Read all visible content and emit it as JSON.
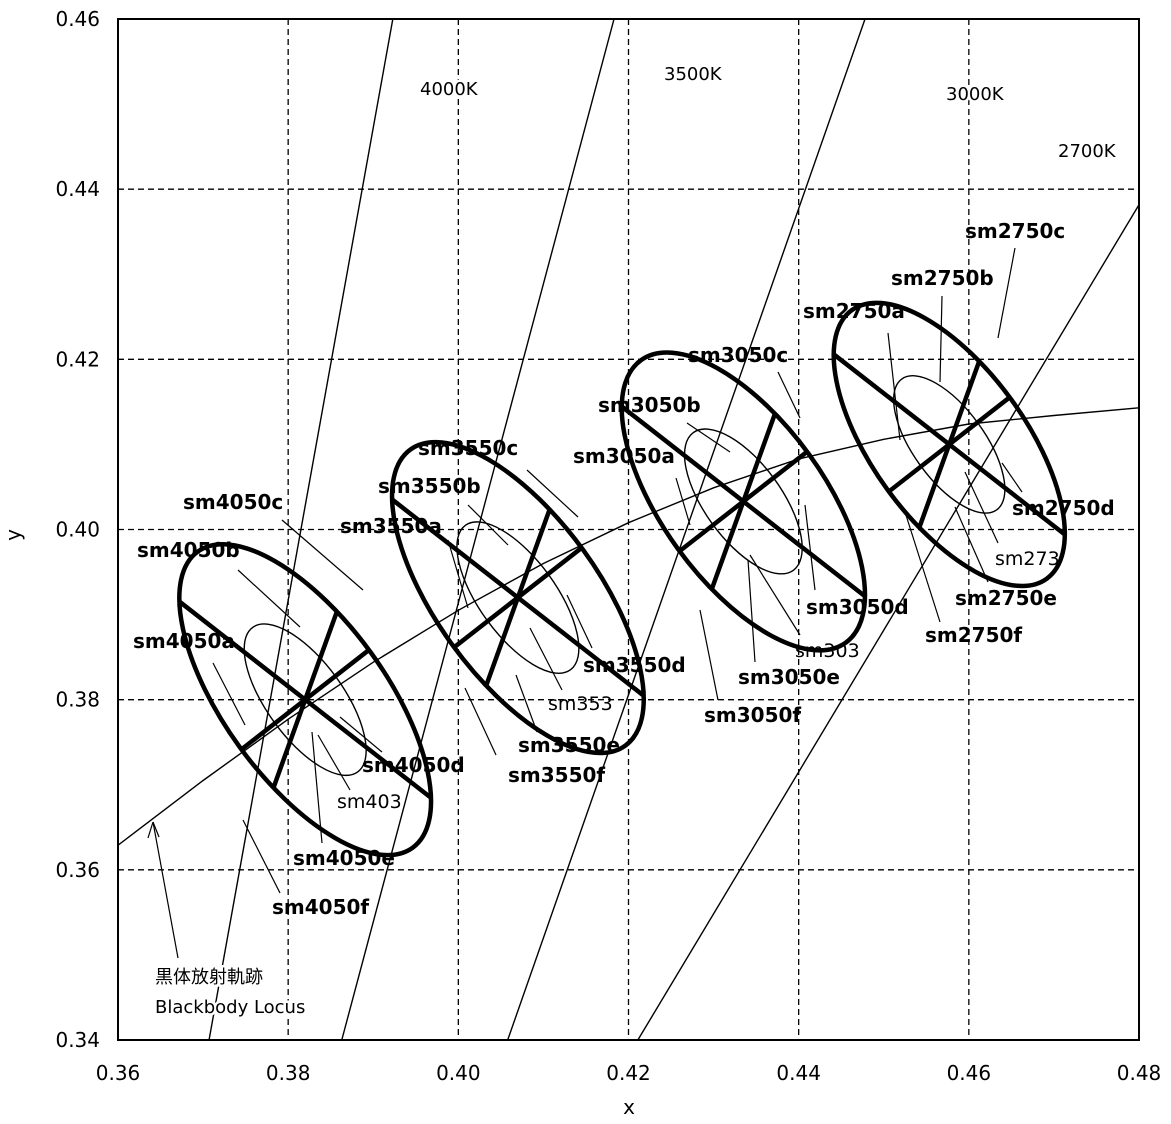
{
  "chart_data": {
    "type": "scatter",
    "title": "",
    "xlabel": "x",
    "ylabel": "y",
    "xlim": [
      0.36,
      0.48
    ],
    "ylim": [
      0.34,
      0.46
    ],
    "x_ticks": [
      "0.36",
      "0.38",
      "0.40",
      "0.42",
      "0.44",
      "0.46",
      "0.48"
    ],
    "y_ticks": [
      "0.34",
      "0.36",
      "0.38",
      "0.40",
      "0.42",
      "0.44",
      "0.46"
    ],
    "grid": "dashed",
    "blackbody_locus": {
      "label_line1": "黒体放射軌跡",
      "label_line2": "Blackbody Locus",
      "points": [
        [
          0.36,
          0.3629
        ],
        [
          0.37,
          0.3705
        ],
        [
          0.38,
          0.3777
        ],
        [
          0.39,
          0.3844
        ],
        [
          0.4,
          0.3905
        ],
        [
          0.41,
          0.396
        ],
        [
          0.42,
          0.4008
        ],
        [
          0.43,
          0.4049
        ],
        [
          0.44,
          0.4083
        ],
        [
          0.45,
          0.4106
        ],
        [
          0.46,
          0.4124
        ],
        [
          0.47,
          0.4134
        ],
        [
          0.48,
          0.4143
        ]
      ]
    },
    "isotherms": [
      {
        "label": "4000K",
        "points": [
          [
            0.3707,
            0.34
          ],
          [
            0.3923,
            0.46
          ]
        ]
      },
      {
        "label": "3500K",
        "points": [
          [
            0.3863,
            0.34
          ],
          [
            0.4183,
            0.46
          ]
        ]
      },
      {
        "label": "3000K",
        "points": [
          [
            0.4058,
            0.34
          ],
          [
            0.4478,
            0.46
          ]
        ]
      },
      {
        "label": "2700K",
        "points": [
          [
            0.4211,
            0.34
          ],
          [
            0.4811,
            0.44
          ]
        ]
      }
    ],
    "ellipse_groups": [
      {
        "center": [
          0.382,
          0.38
        ],
        "outer": {
          "a": 0.0095,
          "b": 0.0215,
          "angle_deg": 36
        },
        "inner": {
          "a": 0.0045,
          "b": 0.0105,
          "angle_deg": 36
        },
        "inner_label": "sm403",
        "sub_labels": [
          "sm4050a",
          "sm4050b",
          "sm4050c",
          "sm4050d",
          "sm4050e",
          "sm4050f"
        ]
      },
      {
        "center": [
          0.407,
          0.392
        ],
        "outer": {
          "a": 0.0095,
          "b": 0.0215,
          "angle_deg": 36
        },
        "inner": {
          "a": 0.0045,
          "b": 0.0105,
          "angle_deg": 36
        },
        "inner_label": "sm353",
        "sub_labels": [
          "sm3550a",
          "sm3550b",
          "sm3550c",
          "sm3550d",
          "sm3550e",
          "sm3550f"
        ]
      },
      {
        "center": [
          0.4335,
          0.4033
        ],
        "outer": {
          "a": 0.0095,
          "b": 0.0205,
          "angle_deg": 36
        },
        "inner": {
          "a": 0.0045,
          "b": 0.01,
          "angle_deg": 36
        },
        "inner_label": "sm303",
        "sub_labels": [
          "sm3050a",
          "sm3050b",
          "sm3050c",
          "sm3050d",
          "sm3050e",
          "sm3050f"
        ]
      },
      {
        "center": [
          0.4577,
          0.41
        ],
        "outer": {
          "a": 0.009,
          "b": 0.0195,
          "angle_deg": 36
        },
        "inner": {
          "a": 0.0042,
          "b": 0.0095,
          "angle_deg": 36
        },
        "inner_label": "sm273",
        "sub_labels": [
          "sm2750a",
          "sm2750b",
          "sm2750c",
          "sm2750d",
          "sm2750e",
          "sm2750f"
        ]
      }
    ]
  }
}
